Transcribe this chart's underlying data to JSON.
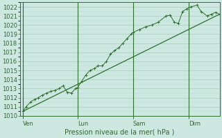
{
  "xlabel": "Pression niveau de la mer( hPa )",
  "bg_color": "#cce8e0",
  "grid_major_color": "#aaccbb",
  "grid_minor_color": "#bbddd5",
  "line_color": "#2d6e2d",
  "text_color": "#336633",
  "ylim": [
    1010,
    1022.5
  ],
  "yticks": [
    1010,
    1011,
    1012,
    1013,
    1014,
    1015,
    1016,
    1017,
    1018,
    1019,
    1020,
    1021,
    1022
  ],
  "day_labels": [
    "Ven",
    "Lun",
    "Sam",
    "Dim"
  ],
  "day_positions": [
    0.05,
    2.7,
    5.4,
    8.1
  ],
  "xlim": [
    -0.1,
    9.6
  ],
  "series1_x": [
    0.05,
    0.2,
    0.4,
    0.6,
    0.8,
    1.0,
    1.2,
    1.4,
    1.6,
    1.8,
    2.0,
    2.2,
    2.4,
    2.6,
    2.7,
    2.9,
    3.1,
    3.3,
    3.5,
    3.7,
    3.9,
    4.1,
    4.3,
    4.5,
    4.7,
    4.9,
    5.1,
    5.3,
    5.4,
    5.7,
    6.0,
    6.3,
    6.6,
    7.0,
    7.2,
    7.4,
    7.6,
    7.8,
    8.0,
    8.2,
    8.5,
    8.7,
    9.0,
    9.2,
    9.4,
    9.6
  ],
  "series1_y": [
    1010.5,
    1011.0,
    1011.5,
    1011.8,
    1012.0,
    1012.3,
    1012.5,
    1012.7,
    1012.8,
    1013.0,
    1013.3,
    1012.6,
    1012.5,
    1013.0,
    1013.1,
    1013.8,
    1014.5,
    1015.0,
    1015.2,
    1015.5,
    1015.5,
    1016.0,
    1016.8,
    1017.2,
    1017.5,
    1018.0,
    1018.5,
    1019.0,
    1019.2,
    1019.5,
    1019.8,
    1020.0,
    1020.3,
    1021.0,
    1021.1,
    1020.3,
    1020.2,
    1021.5,
    1021.8,
    1022.0,
    1022.2,
    1021.5,
    1021.0,
    1021.2,
    1021.4,
    1021.2
  ],
  "series2_x": [
    0.05,
    9.6
  ],
  "series2_y": [
    1010.5,
    1021.2
  ]
}
